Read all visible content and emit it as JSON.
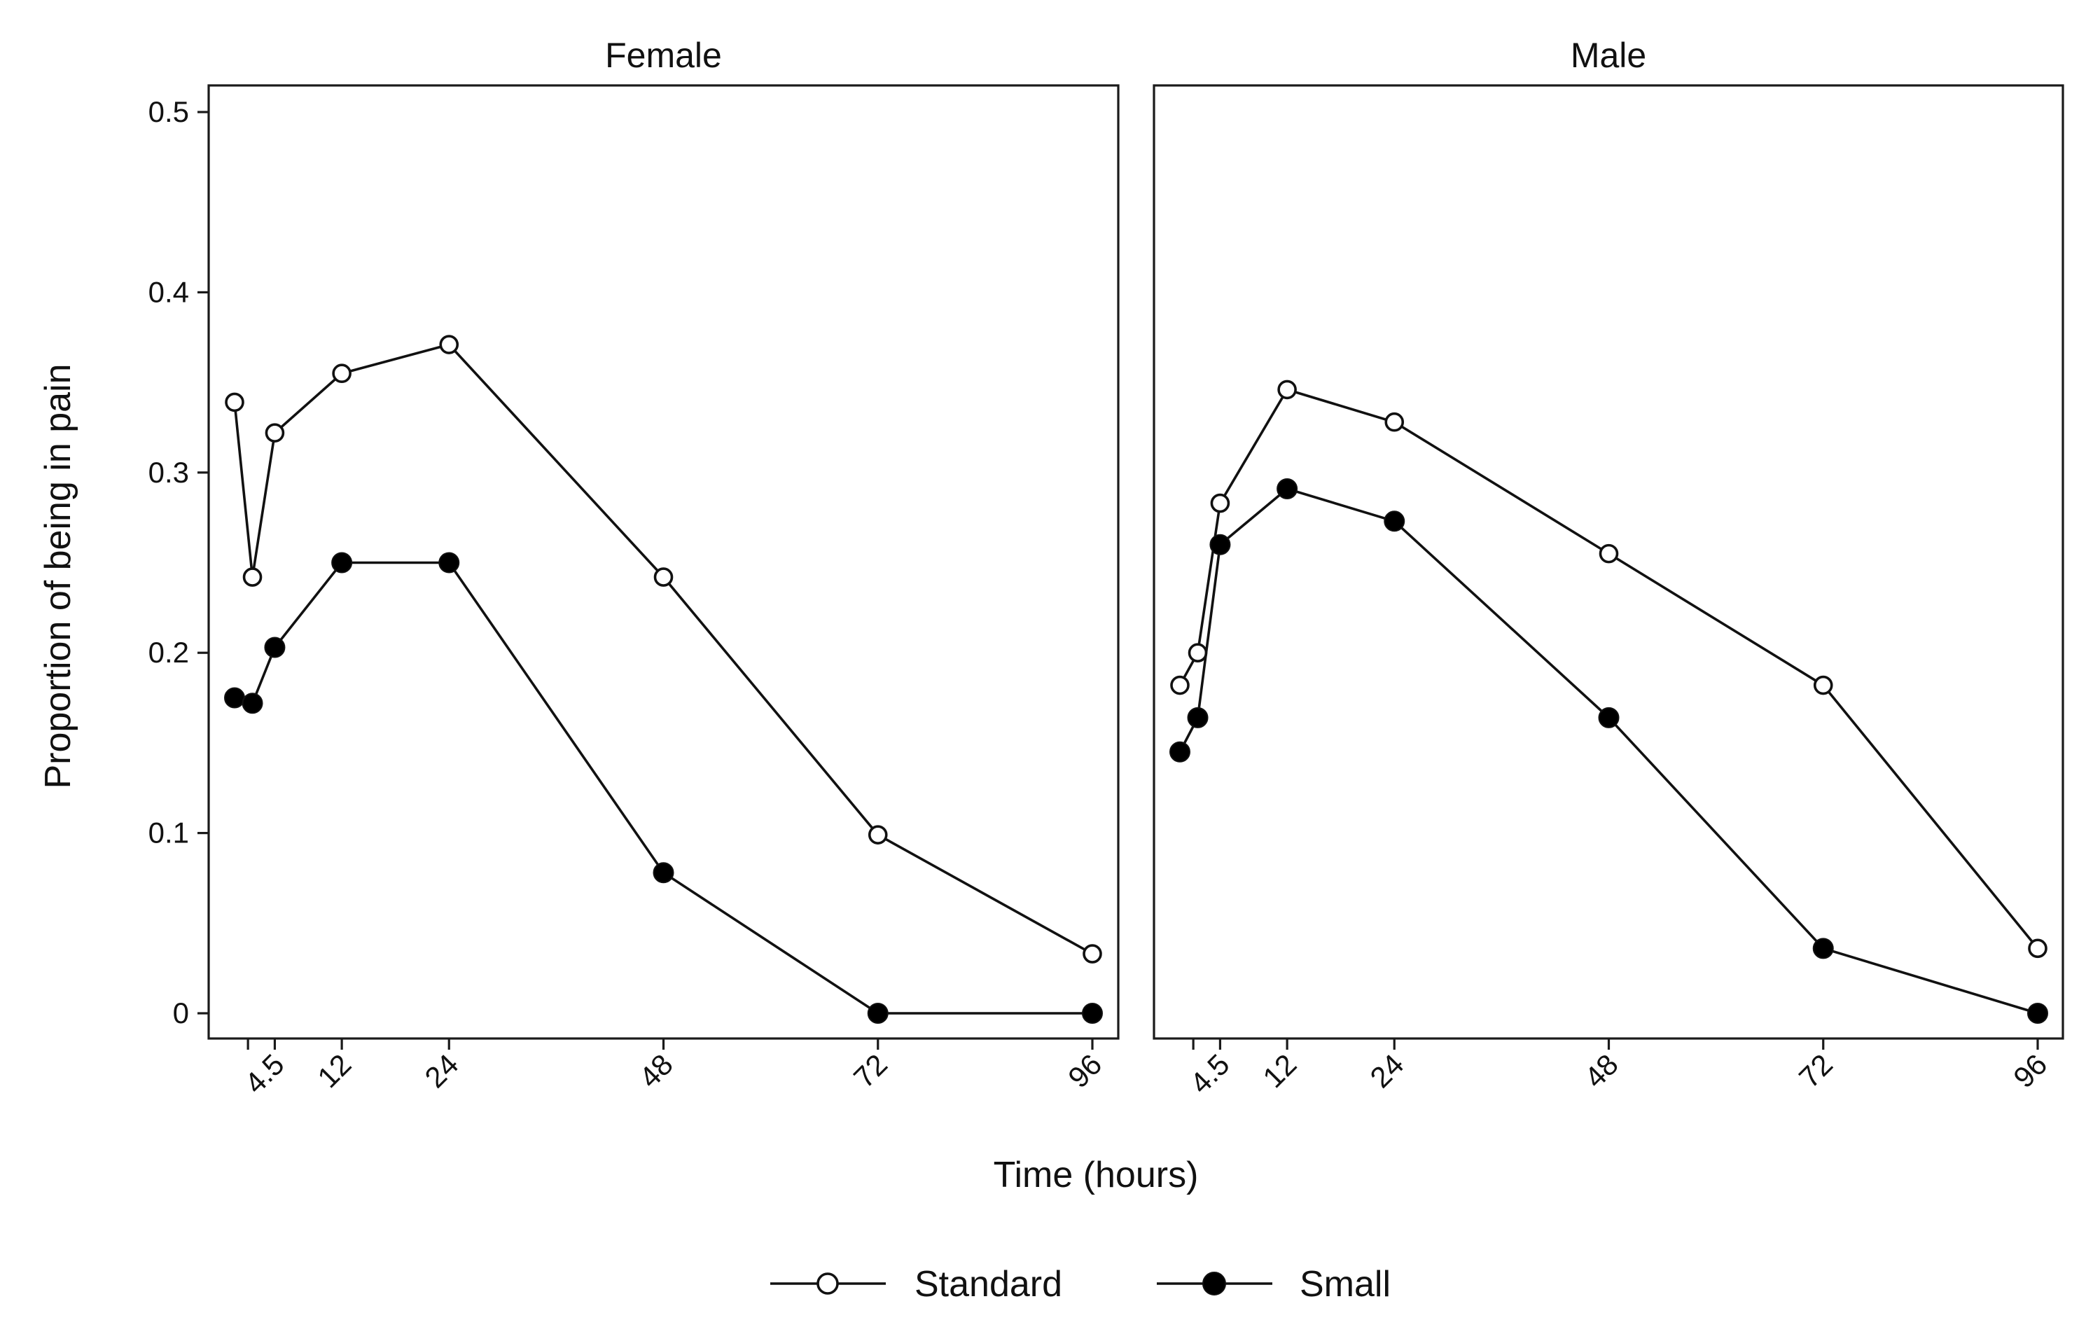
{
  "colors": {
    "line": "#111111",
    "frame": "#1a1a1a",
    "marker_open_fill": "#ffffff",
    "marker_filled": "#000000",
    "background": "#ffffff"
  },
  "chart_data": {
    "type": "line",
    "ylabel": "Proportion of being in pain",
    "xlabel": "Time (hours)",
    "ylim": [
      0,
      0.5
    ],
    "yticks": [
      0,
      0.1,
      0.2,
      0.3,
      0.4,
      0.5
    ],
    "ytick_labels": [
      "0",
      "0.1",
      "0.2",
      "0.3",
      "0.4",
      "0.5"
    ],
    "xlim": [
      0,
      96
    ],
    "xticks": [
      1.5,
      4.5,
      12,
      24,
      48,
      72,
      96
    ],
    "xtick_labels": [
      "",
      "4.5",
      "12",
      "24",
      "48",
      "72",
      "96"
    ],
    "legend": {
      "position": "bottom-center",
      "entries": [
        {
          "name": "Standard",
          "marker": "open-circle"
        },
        {
          "name": "Small",
          "marker": "filled-circle"
        }
      ]
    },
    "panels": [
      {
        "title": "Female",
        "series": [
          {
            "name": "Standard",
            "marker": "open-circle",
            "x": [
              0,
              2,
              4.5,
              12,
              24,
              48,
              72,
              96
            ],
            "y": [
              0.339,
              0.242,
              0.322,
              0.355,
              0.371,
              0.242,
              0.099,
              0.033
            ]
          },
          {
            "name": "Small",
            "marker": "filled-circle",
            "x": [
              0,
              2,
              4.5,
              12,
              24,
              48,
              72,
              96
            ],
            "y": [
              0.175,
              0.172,
              0.203,
              0.25,
              0.25,
              0.078,
              0.0,
              0.0
            ]
          }
        ]
      },
      {
        "title": "Male",
        "series": [
          {
            "name": "Standard",
            "marker": "open-circle",
            "x": [
              0,
              2,
              4.5,
              12,
              24,
              48,
              72,
              96
            ],
            "y": [
              0.182,
              0.2,
              0.283,
              0.346,
              0.328,
              0.255,
              0.182,
              0.036
            ]
          },
          {
            "name": "Small",
            "marker": "filled-circle",
            "x": [
              0,
              2,
              4.5,
              12,
              24,
              48,
              72,
              96
            ],
            "y": [
              0.145,
              0.164,
              0.26,
              0.291,
              0.273,
              0.164,
              0.036,
              0.0
            ]
          }
        ]
      }
    ]
  }
}
